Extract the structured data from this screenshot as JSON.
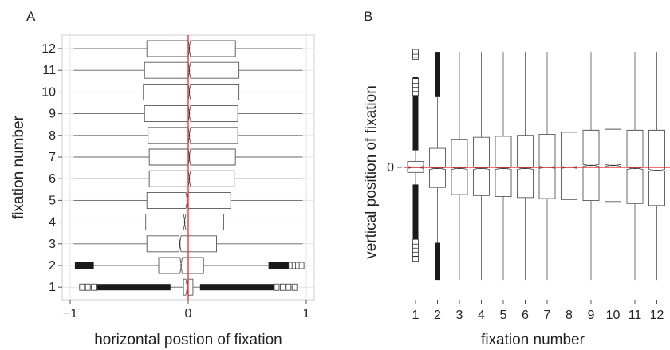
{
  "chart_data": [
    {
      "panel_label": "A",
      "type": "boxplot",
      "orientation": "horizontal",
      "xlabel": "horizontal postion of fixation",
      "ylabel": "fixation number",
      "xlim": [
        -1,
        1
      ],
      "xticks": [
        -1,
        0,
        1
      ],
      "xtick_labels": [
        "−1",
        "0",
        "1"
      ],
      "categories": [
        "1",
        "2",
        "3",
        "4",
        "5",
        "6",
        "7",
        "8",
        "9",
        "10",
        "11",
        "12"
      ],
      "reference_line": {
        "x": 0,
        "color": "#e02020"
      },
      "grid": true,
      "boxes": [
        {
          "q1": -0.04,
          "median": -0.01,
          "q3": 0.04,
          "notch_lo": -0.02,
          "notch_hi": 0.0,
          "whisker_lo": -0.15,
          "whisker_hi": 0.1,
          "outliers_lo": [
            -0.77,
            -0.15
          ],
          "outliers_hi": [
            0.1,
            0.73
          ],
          "extreme_lo": [
            -0.9,
            -0.85,
            -0.8
          ],
          "extreme_hi": [
            0.75,
            0.8,
            0.85,
            0.9
          ]
        },
        {
          "q1": -0.25,
          "median": -0.06,
          "q3": 0.13,
          "notch_lo": -0.07,
          "notch_hi": -0.05,
          "whisker_lo": -0.8,
          "whisker_hi": 0.68,
          "outliers_lo": [
            -0.96,
            -0.8
          ],
          "outliers_hi": [
            0.68,
            0.85
          ],
          "extreme_lo": [],
          "extreme_hi": [
            0.87,
            0.9,
            0.93,
            0.96
          ]
        },
        {
          "q1": -0.35,
          "median": -0.07,
          "q3": 0.24,
          "notch_lo": -0.08,
          "notch_hi": -0.06,
          "whisker_lo": -0.97,
          "whisker_hi": 0.97
        },
        {
          "q1": -0.36,
          "median": -0.03,
          "q3": 0.3,
          "notch_lo": -0.04,
          "notch_hi": -0.02,
          "whisker_lo": -0.97,
          "whisker_hi": 0.97
        },
        {
          "q1": -0.35,
          "median": -0.01,
          "q3": 0.36,
          "notch_lo": -0.02,
          "notch_hi": 0.0,
          "whisker_lo": -0.97,
          "whisker_hi": 0.97
        },
        {
          "q1": -0.33,
          "median": 0.01,
          "q3": 0.39,
          "notch_lo": 0.0,
          "notch_hi": 0.02,
          "whisker_lo": -0.97,
          "whisker_hi": 0.97
        },
        {
          "q1": -0.33,
          "median": 0.01,
          "q3": 0.4,
          "notch_lo": 0.0,
          "notch_hi": 0.02,
          "whisker_lo": -0.97,
          "whisker_hi": 0.97
        },
        {
          "q1": -0.34,
          "median": 0.01,
          "q3": 0.42,
          "notch_lo": 0.0,
          "notch_hi": 0.02,
          "whisker_lo": -0.97,
          "whisker_hi": 0.97
        },
        {
          "q1": -0.37,
          "median": 0.01,
          "q3": 0.42,
          "notch_lo": 0.0,
          "notch_hi": 0.02,
          "whisker_lo": -0.97,
          "whisker_hi": 0.97
        },
        {
          "q1": -0.38,
          "median": 0.01,
          "q3": 0.43,
          "notch_lo": 0.0,
          "notch_hi": 0.02,
          "whisker_lo": -0.97,
          "whisker_hi": 0.97
        },
        {
          "q1": -0.37,
          "median": 0.01,
          "q3": 0.43,
          "notch_lo": 0.0,
          "notch_hi": 0.02,
          "whisker_lo": -0.97,
          "whisker_hi": 0.97
        },
        {
          "q1": -0.35,
          "median": 0.01,
          "q3": 0.4,
          "notch_lo": 0.0,
          "notch_hi": 0.02,
          "whisker_lo": -0.97,
          "whisker_hi": 0.97
        }
      ]
    },
    {
      "panel_label": "B",
      "type": "boxplot",
      "orientation": "vertical",
      "xlabel": "fixation number",
      "ylabel": "vertical position of fixation",
      "ylim": [
        -1.3,
        1.3
      ],
      "yticks": [
        0
      ],
      "ytick_labels": [
        "0"
      ],
      "categories": [
        "1",
        "2",
        "3",
        "4",
        "5",
        "6",
        "7",
        "8",
        "9",
        "10",
        "11",
        "12"
      ],
      "reference_line": {
        "y": 0,
        "color": "#e02020"
      },
      "grid": false,
      "boxes": [
        {
          "q1": -0.05,
          "median": 0.0,
          "q3": 0.06,
          "notch_lo": -0.01,
          "notch_hi": 0.01,
          "whisker_lo": -0.17,
          "whisker_hi": 0.17,
          "outliers_lo": [
            -0.9,
            -0.17
          ],
          "outliers_hi": [
            0.17,
            0.9
          ],
          "extreme_lo": [
            -0.91,
            -0.86,
            -0.82,
            -0.78,
            -0.74
          ],
          "extreme_hi": [
            0.74,
            0.78,
            0.82,
            0.86,
            1.1,
            1.12,
            1.15
          ]
        },
        {
          "q1": -0.2,
          "median": -0.01,
          "q3": 0.19,
          "notch_lo": -0.02,
          "notch_hi": 0.0,
          "whisker_lo": -0.75,
          "whisker_hi": 0.7,
          "outliers_lo": [
            -1.12,
            -0.75
          ],
          "outliers_hi": [
            0.7,
            1.15
          ],
          "extreme_lo": [],
          "extreme_hi": []
        },
        {
          "q1": -0.27,
          "median": -0.01,
          "q3": 0.28,
          "notch_lo": -0.02,
          "notch_hi": 0.0,
          "whisker_lo": -1.12,
          "whisker_hi": 1.15
        },
        {
          "q1": -0.28,
          "median": -0.01,
          "q3": 0.3,
          "notch_lo": -0.02,
          "notch_hi": 0.0,
          "whisker_lo": -1.12,
          "whisker_hi": 1.15
        },
        {
          "q1": -0.29,
          "median": -0.01,
          "q3": 0.31,
          "notch_lo": -0.02,
          "notch_hi": 0.0,
          "whisker_lo": -1.12,
          "whisker_hi": 1.15
        },
        {
          "q1": -0.3,
          "median": -0.01,
          "q3": 0.32,
          "notch_lo": -0.02,
          "notch_hi": 0.0,
          "whisker_lo": -1.12,
          "whisker_hi": 1.15
        },
        {
          "q1": -0.31,
          "median": 0.0,
          "q3": 0.33,
          "notch_lo": -0.01,
          "notch_hi": 0.01,
          "whisker_lo": -1.12,
          "whisker_hi": 1.15
        },
        {
          "q1": -0.32,
          "median": 0.0,
          "q3": 0.35,
          "notch_lo": -0.01,
          "notch_hi": 0.01,
          "whisker_lo": -1.12,
          "whisker_hi": 1.15
        },
        {
          "q1": -0.33,
          "median": 0.02,
          "q3": 0.37,
          "notch_lo": 0.01,
          "notch_hi": 0.03,
          "whisker_lo": -1.12,
          "whisker_hi": 1.15
        },
        {
          "q1": -0.34,
          "median": 0.02,
          "q3": 0.38,
          "notch_lo": 0.01,
          "notch_hi": 0.03,
          "whisker_lo": -1.12,
          "whisker_hi": 1.15
        },
        {
          "q1": -0.36,
          "median": -0.01,
          "q3": 0.37,
          "notch_lo": -0.02,
          "notch_hi": 0.0,
          "whisker_lo": -1.12,
          "whisker_hi": 1.15
        },
        {
          "q1": -0.38,
          "median": -0.03,
          "q3": 0.37,
          "notch_lo": -0.04,
          "notch_hi": -0.02,
          "whisker_lo": -1.12,
          "whisker_hi": 1.15
        }
      ]
    }
  ]
}
